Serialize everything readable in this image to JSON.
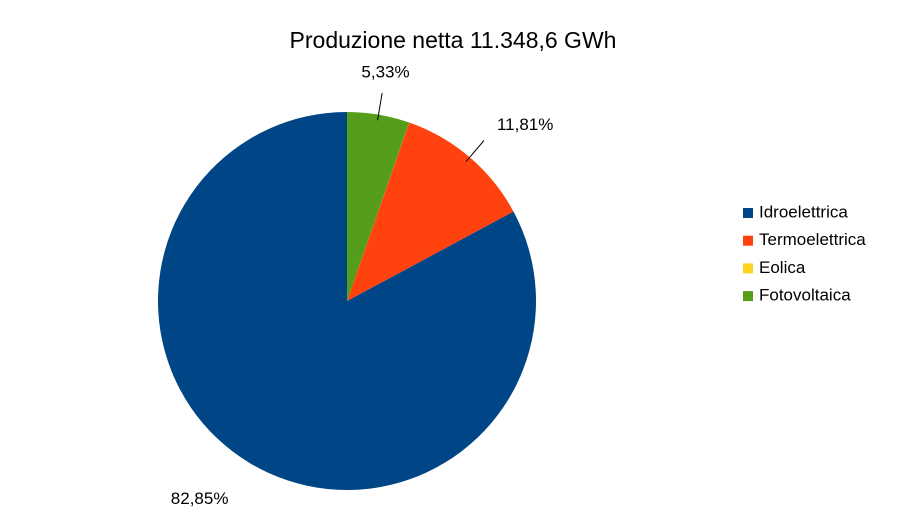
{
  "chart_data": {
    "type": "pie",
    "title": "Produzione netta 11.348,6 GWh",
    "categories": [
      "Idroelettrica",
      "Termoelettrica",
      "Eolica",
      "Fotovoltaica"
    ],
    "values": [
      82.85,
      11.81,
      0.01,
      5.33
    ],
    "value_labels": [
      "82,85%",
      "11,81%",
      null,
      "5,33%"
    ],
    "colors": [
      "#004586",
      "#ff420e",
      "#ffd320",
      "#579d1c"
    ],
    "legend": "right"
  }
}
